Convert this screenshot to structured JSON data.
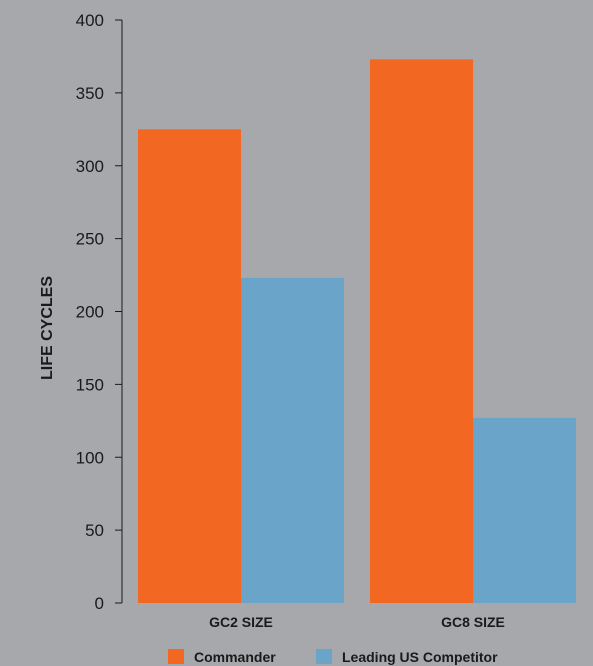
{
  "colors": {
    "background": "#a6a8ab",
    "axis": "#1a1a1a"
  },
  "chart_data": {
    "type": "bar",
    "categories": [
      "GC2 SIZE",
      "GC8 SIZE"
    ],
    "series": [
      {
        "name": "Commander",
        "color": "#f26722",
        "values": [
          325,
          373
        ]
      },
      {
        "name": "Leading US Competitor",
        "color": "#6aa4c8",
        "values": [
          223,
          127
        ]
      }
    ],
    "ylabel": "LIFE CYCLES",
    "xlabel": "",
    "ylim": [
      0,
      400
    ],
    "yticks": [
      0,
      50,
      100,
      150,
      200,
      250,
      300,
      350,
      400
    ],
    "legend_position": "bottom",
    "grid": false
  }
}
